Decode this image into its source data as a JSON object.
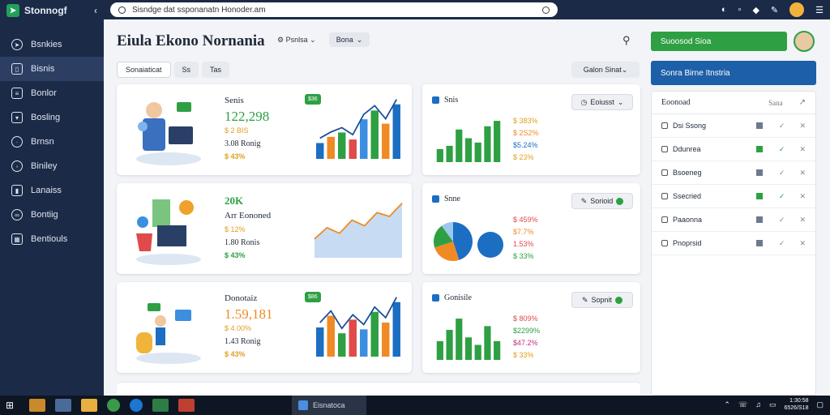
{
  "app": {
    "name": "Stonnogf"
  },
  "sidebar": {
    "items": [
      {
        "label": "Bsnkies"
      },
      {
        "label": "Bisnis"
      },
      {
        "label": "Bonlor"
      },
      {
        "label": "Bosling"
      },
      {
        "label": "Brnsn"
      },
      {
        "label": "Biniley"
      },
      {
        "label": "Lanaiss"
      },
      {
        "label": "Bontiig"
      },
      {
        "label": "Bentiouls"
      }
    ]
  },
  "topbar": {
    "search_text": "Sisndge dat ssponanatn Honoder.am"
  },
  "header": {
    "title": "Eiula Ekono Nornania",
    "dropdown_label": "Psnlsa",
    "button_label": "Bona",
    "green_button": "Suoosod Sioa",
    "blue_button": "Sonra Birne Itnstria"
  },
  "filters": {
    "tabs": [
      {
        "label": "Sonaiaticat"
      },
      {
        "label": "Ss"
      },
      {
        "label": "Tas"
      }
    ],
    "range": "Galon Sinat"
  },
  "cards": [
    {
      "label": "Senis",
      "value": "122,298",
      "sub1": "$ 2 BIS",
      "sub2": "3.08 Ronig",
      "sub3": "$ 43%",
      "badge": "$36",
      "chart": {
        "type": "bar",
        "values": [
          18,
          25,
          30,
          22,
          45,
          55,
          40,
          62
        ]
      }
    },
    {
      "label": "20K",
      "value": "Arr Eononed",
      "sub1": "$ 12%",
      "sub2": "1.80 Ronis",
      "sub3": "$ 43%",
      "badge": "",
      "chart": {
        "type": "area",
        "values": [
          20,
          32,
          26,
          40,
          34,
          48,
          44,
          58
        ]
      }
    },
    {
      "label": "Donotaiz",
      "value": "1.59,181",
      "sub1": "$ 4.00%",
      "sub2": "1.43 Ronig",
      "sub3": "$ 43%",
      "badge": "$86",
      "chart": {
        "type": "bar",
        "values": [
          30,
          42,
          24,
          38,
          28,
          46,
          35,
          56
        ]
      }
    }
  ],
  "summary_cards": [
    {
      "title": "Snis",
      "button": "Eoiusst",
      "legend": [
        "$ 383%",
        "$ 2S2%",
        "$5.24%",
        "$ 23%"
      ],
      "chart": {
        "type": "bar",
        "values": [
          12,
          15,
          30,
          22,
          18,
          33,
          38
        ]
      }
    },
    {
      "title": "Snne",
      "button": "Sorioid",
      "legend": [
        "$ 459%",
        "$7.7%",
        "1.53%",
        "$ 33%"
      ],
      "chart": {
        "type": "pie",
        "values": [
          45,
          25,
          20,
          10
        ]
      }
    },
    {
      "title": "Gonisile",
      "button": "Sopnit",
      "legend": [
        "$ 809%",
        "$2299%",
        "$47.2%",
        "$ 33%"
      ],
      "chart": {
        "type": "bar",
        "values": [
          10,
          16,
          22,
          12,
          8,
          18,
          10
        ]
      }
    }
  ],
  "panel": {
    "title": "Eoonoad",
    "secondary": "Sana",
    "rows": [
      {
        "label": "Dsi Ssong",
        "status": "gray",
        "ok": false
      },
      {
        "label": "Ddunrea",
        "status": "green",
        "ok": true
      },
      {
        "label": "Bsoeneg",
        "status": "gray",
        "ok": false
      },
      {
        "label": "Ssecried",
        "status": "green",
        "ok": true
      },
      {
        "label": "Paaonna",
        "status": "gray",
        "ok": false
      },
      {
        "label": "Pnoprsid",
        "status": "gray",
        "ok": false
      }
    ]
  },
  "taskbar": {
    "active_app": "Eisnatoca",
    "clock_time": "1:30:58",
    "clock_date": "6526/S18"
  },
  "colors": {
    "sidebar": "#1b2a47",
    "accent_green": "#2ea043",
    "accent_blue": "#1d5fa8",
    "orange": "#f08a24"
  }
}
